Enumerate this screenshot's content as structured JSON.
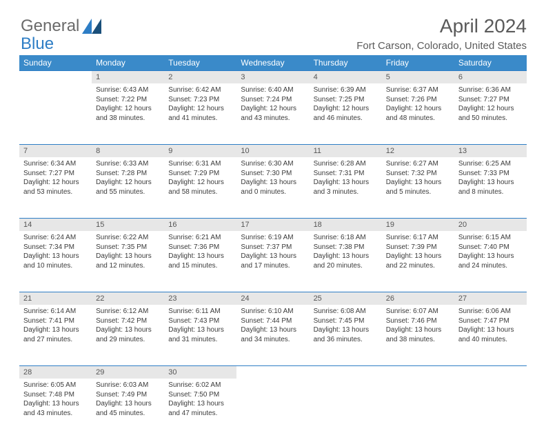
{
  "brand": {
    "part1": "General",
    "part2": "Blue"
  },
  "title": "April 2024",
  "location": "Fort Carson, Colorado, United States",
  "colors": {
    "header_bg": "#3a8ac9",
    "header_fg": "#ffffff",
    "daynum_bg": "#e7e7e7",
    "border": "#2d7dc5",
    "text": "#3a3a3a",
    "logo_blue": "#2d7dc5",
    "logo_dark": "#1a4f7a"
  },
  "weekdays": [
    "Sunday",
    "Monday",
    "Tuesday",
    "Wednesday",
    "Thursday",
    "Friday",
    "Saturday"
  ],
  "weeks": [
    [
      null,
      {
        "num": "1",
        "sunrise": "6:43 AM",
        "sunset": "7:22 PM",
        "daylight": "12 hours and 38 minutes."
      },
      {
        "num": "2",
        "sunrise": "6:42 AM",
        "sunset": "7:23 PM",
        "daylight": "12 hours and 41 minutes."
      },
      {
        "num": "3",
        "sunrise": "6:40 AM",
        "sunset": "7:24 PM",
        "daylight": "12 hours and 43 minutes."
      },
      {
        "num": "4",
        "sunrise": "6:39 AM",
        "sunset": "7:25 PM",
        "daylight": "12 hours and 46 minutes."
      },
      {
        "num": "5",
        "sunrise": "6:37 AM",
        "sunset": "7:26 PM",
        "daylight": "12 hours and 48 minutes."
      },
      {
        "num": "6",
        "sunrise": "6:36 AM",
        "sunset": "7:27 PM",
        "daylight": "12 hours and 50 minutes."
      }
    ],
    [
      {
        "num": "7",
        "sunrise": "6:34 AM",
        "sunset": "7:27 PM",
        "daylight": "12 hours and 53 minutes."
      },
      {
        "num": "8",
        "sunrise": "6:33 AM",
        "sunset": "7:28 PM",
        "daylight": "12 hours and 55 minutes."
      },
      {
        "num": "9",
        "sunrise": "6:31 AM",
        "sunset": "7:29 PM",
        "daylight": "12 hours and 58 minutes."
      },
      {
        "num": "10",
        "sunrise": "6:30 AM",
        "sunset": "7:30 PM",
        "daylight": "13 hours and 0 minutes."
      },
      {
        "num": "11",
        "sunrise": "6:28 AM",
        "sunset": "7:31 PM",
        "daylight": "13 hours and 3 minutes."
      },
      {
        "num": "12",
        "sunrise": "6:27 AM",
        "sunset": "7:32 PM",
        "daylight": "13 hours and 5 minutes."
      },
      {
        "num": "13",
        "sunrise": "6:25 AM",
        "sunset": "7:33 PM",
        "daylight": "13 hours and 8 minutes."
      }
    ],
    [
      {
        "num": "14",
        "sunrise": "6:24 AM",
        "sunset": "7:34 PM",
        "daylight": "13 hours and 10 minutes."
      },
      {
        "num": "15",
        "sunrise": "6:22 AM",
        "sunset": "7:35 PM",
        "daylight": "13 hours and 12 minutes."
      },
      {
        "num": "16",
        "sunrise": "6:21 AM",
        "sunset": "7:36 PM",
        "daylight": "13 hours and 15 minutes."
      },
      {
        "num": "17",
        "sunrise": "6:19 AM",
        "sunset": "7:37 PM",
        "daylight": "13 hours and 17 minutes."
      },
      {
        "num": "18",
        "sunrise": "6:18 AM",
        "sunset": "7:38 PM",
        "daylight": "13 hours and 20 minutes."
      },
      {
        "num": "19",
        "sunrise": "6:17 AM",
        "sunset": "7:39 PM",
        "daylight": "13 hours and 22 minutes."
      },
      {
        "num": "20",
        "sunrise": "6:15 AM",
        "sunset": "7:40 PM",
        "daylight": "13 hours and 24 minutes."
      }
    ],
    [
      {
        "num": "21",
        "sunrise": "6:14 AM",
        "sunset": "7:41 PM",
        "daylight": "13 hours and 27 minutes."
      },
      {
        "num": "22",
        "sunrise": "6:12 AM",
        "sunset": "7:42 PM",
        "daylight": "13 hours and 29 minutes."
      },
      {
        "num": "23",
        "sunrise": "6:11 AM",
        "sunset": "7:43 PM",
        "daylight": "13 hours and 31 minutes."
      },
      {
        "num": "24",
        "sunrise": "6:10 AM",
        "sunset": "7:44 PM",
        "daylight": "13 hours and 34 minutes."
      },
      {
        "num": "25",
        "sunrise": "6:08 AM",
        "sunset": "7:45 PM",
        "daylight": "13 hours and 36 minutes."
      },
      {
        "num": "26",
        "sunrise": "6:07 AM",
        "sunset": "7:46 PM",
        "daylight": "13 hours and 38 minutes."
      },
      {
        "num": "27",
        "sunrise": "6:06 AM",
        "sunset": "7:47 PM",
        "daylight": "13 hours and 40 minutes."
      }
    ],
    [
      {
        "num": "28",
        "sunrise": "6:05 AM",
        "sunset": "7:48 PM",
        "daylight": "13 hours and 43 minutes."
      },
      {
        "num": "29",
        "sunrise": "6:03 AM",
        "sunset": "7:49 PM",
        "daylight": "13 hours and 45 minutes."
      },
      {
        "num": "30",
        "sunrise": "6:02 AM",
        "sunset": "7:50 PM",
        "daylight": "13 hours and 47 minutes."
      },
      null,
      null,
      null,
      null
    ]
  ],
  "labels": {
    "sunrise_prefix": "Sunrise: ",
    "sunset_prefix": "Sunset: ",
    "daylight_prefix": "Daylight: "
  }
}
